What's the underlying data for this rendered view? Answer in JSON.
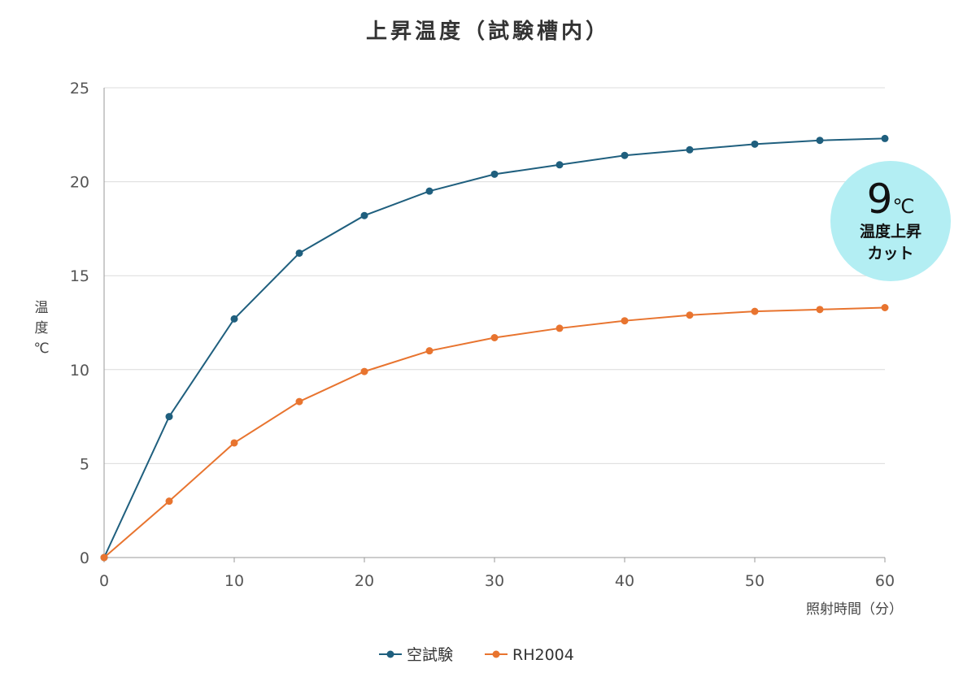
{
  "chart_data": {
    "type": "line",
    "title": "上昇温度（試験槽内）",
    "xlabel": "照射時間（分）",
    "ylabel": "温度℃",
    "xlim": [
      0,
      60
    ],
    "ylim": [
      0,
      25
    ],
    "x_ticks": [
      "0",
      "10",
      "20",
      "30",
      "40",
      "50",
      "60"
    ],
    "y_ticks": [
      "0",
      "5",
      "10",
      "15",
      "20",
      "25"
    ],
    "x": [
      0,
      5,
      10,
      15,
      20,
      25,
      30,
      35,
      40,
      45,
      50,
      55,
      60
    ],
    "series": [
      {
        "name": "空試験",
        "color": "#1f5f7e",
        "values": [
          0,
          7.5,
          12.7,
          16.2,
          18.2,
          19.5,
          20.4,
          20.9,
          21.4,
          21.7,
          22.0,
          22.2,
          22.3
        ]
      },
      {
        "name": "RH2004",
        "color": "#e8742f",
        "values": [
          0,
          3.0,
          6.1,
          8.3,
          9.9,
          11.0,
          11.7,
          12.2,
          12.6,
          12.9,
          13.1,
          13.2,
          13.3
        ]
      }
    ],
    "grid": true,
    "legend_position": "bottom-center",
    "annotation": {
      "value": "9",
      "unit": "℃",
      "line1": "温度上昇",
      "line2": "カット",
      "color": "#b3eef3"
    }
  }
}
